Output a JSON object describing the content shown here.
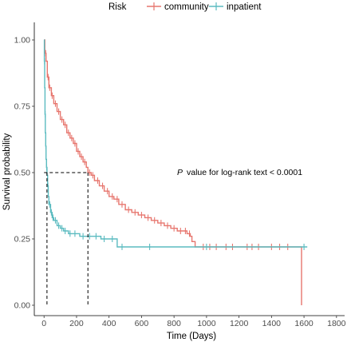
{
  "chart_data": {
    "type": "line",
    "subtype": "kaplan-meier survival curve",
    "xlabel": "Time (Days)",
    "ylabel": "Survival probability",
    "xlim": [
      -60,
      1850
    ],
    "ylim": [
      0,
      1
    ],
    "xticks": [
      0,
      200,
      400,
      600,
      800,
      1000,
      1200,
      1400,
      1600,
      1800
    ],
    "yticks": [
      0.0,
      0.25,
      0.5,
      0.75,
      1.0
    ],
    "ytick_labels": [
      "0.00",
      "0.25",
      "0.50",
      "0.75",
      "1.00"
    ],
    "grid": false,
    "legend": {
      "title": "Risk",
      "position": "top",
      "entries": [
        "community",
        "inpatient"
      ]
    },
    "annotation": {
      "p_label": "P",
      "text": "value for log-rank text < 0.0001",
      "x": 1000,
      "y": 0.5
    },
    "median_lines": [
      {
        "x": 18,
        "y": 0.5
      },
      {
        "x": 270,
        "y": 0.5
      }
    ],
    "series": [
      {
        "name": "community",
        "color": "#E7766E",
        "x": [
          0,
          5,
          12,
          20,
          30,
          45,
          60,
          80,
          100,
          120,
          140,
          160,
          180,
          200,
          220,
          240,
          260,
          270,
          290,
          310,
          340,
          370,
          400,
          430,
          460,
          500,
          540,
          580,
          620,
          660,
          700,
          740,
          780,
          820,
          850,
          880,
          900,
          910,
          930,
          960,
          1000,
          1100,
          1200,
          1300,
          1400,
          1500,
          1580,
          1585
        ],
        "y": [
          1.0,
          0.95,
          0.92,
          0.86,
          0.82,
          0.79,
          0.76,
          0.73,
          0.7,
          0.68,
          0.65,
          0.63,
          0.61,
          0.58,
          0.56,
          0.54,
          0.52,
          0.5,
          0.49,
          0.47,
          0.45,
          0.43,
          0.41,
          0.4,
          0.38,
          0.36,
          0.35,
          0.34,
          0.33,
          0.32,
          0.31,
          0.3,
          0.29,
          0.28,
          0.28,
          0.27,
          0.26,
          0.24,
          0.22,
          0.22,
          0.22,
          0.22,
          0.22,
          0.22,
          0.22,
          0.22,
          0.22,
          0.0
        ],
        "censor_x": [
          10,
          25,
          35,
          50,
          70,
          90,
          110,
          130,
          150,
          170,
          190,
          210,
          230,
          250,
          280,
          300,
          330,
          360,
          390,
          420,
          450,
          480,
          520,
          560,
          600,
          640,
          680,
          720,
          760,
          800,
          840,
          870,
          895,
          980,
          1020,
          1060,
          1120,
          1160,
          1250,
          1280,
          1320,
          1400,
          1450,
          1500
        ]
      },
      {
        "name": "inpatient",
        "color": "#5BBBC0",
        "x": [
          0,
          2,
          4,
          6,
          8,
          10,
          12,
          15,
          18,
          22,
          26,
          30,
          40,
          50,
          60,
          80,
          100,
          120,
          150,
          180,
          220,
          260,
          300,
          350,
          400,
          450,
          470,
          600,
          800,
          1000,
          1200,
          1400,
          1600,
          1620
        ],
        "y": [
          1.0,
          0.92,
          0.82,
          0.72,
          0.65,
          0.6,
          0.55,
          0.52,
          0.49,
          0.45,
          0.41,
          0.38,
          0.35,
          0.33,
          0.32,
          0.3,
          0.29,
          0.28,
          0.27,
          0.27,
          0.26,
          0.26,
          0.26,
          0.25,
          0.25,
          0.22,
          0.22,
          0.22,
          0.22,
          0.22,
          0.22,
          0.22,
          0.22,
          0.22
        ],
        "censor_x": [
          3,
          7,
          11,
          16,
          24,
          35,
          45,
          55,
          70,
          90,
          110,
          130,
          160,
          190,
          240,
          280,
          320,
          370,
          420,
          480,
          650,
          1000,
          1600
        ]
      }
    ]
  }
}
